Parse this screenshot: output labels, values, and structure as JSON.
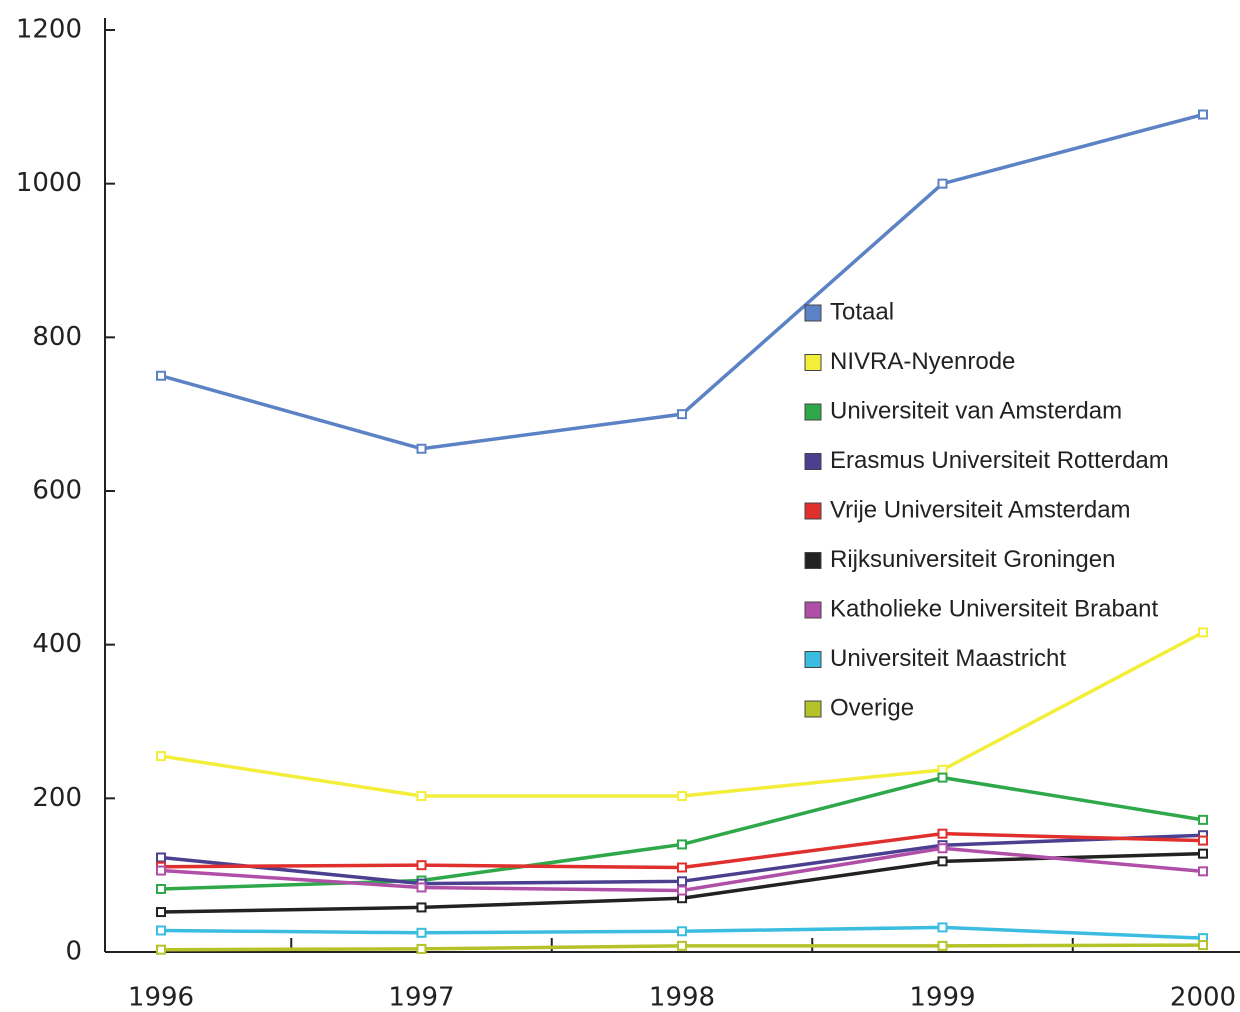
{
  "chart_data": {
    "type": "line",
    "categories": [
      "1996",
      "1997",
      "1998",
      "1999",
      "2000"
    ],
    "series": [
      {
        "name": "Totaal",
        "color": "#5b82c4",
        "values": [
          750,
          655,
          700,
          1000,
          1090
        ]
      },
      {
        "name": "NIVRA-Nyenrode",
        "color": "#f2ee3a",
        "values": [
          255,
          203,
          203,
          237,
          416
        ]
      },
      {
        "name": "Universiteit van Amsterdam",
        "color": "#2fa84a",
        "values": [
          82,
          93,
          140,
          227,
          172
        ]
      },
      {
        "name": "Erasmus Universiteit Rotterdam",
        "color": "#4b3f8f",
        "values": [
          123,
          89,
          92,
          139,
          152
        ]
      },
      {
        "name": "Vrije Universiteit Amsterdam",
        "color": "#e0302e",
        "values": [
          111,
          113,
          110,
          154,
          145
        ]
      },
      {
        "name": "Rijksuniversiteit Groningen",
        "color": "#222222",
        "values": [
          52,
          58,
          70,
          118,
          128
        ]
      },
      {
        "name": "Katholieke Universiteit Brabant",
        "color": "#b04fa8",
        "values": [
          106,
          84,
          80,
          135,
          105
        ]
      },
      {
        "name": "Universiteit Maastricht",
        "color": "#3bbde0",
        "values": [
          28,
          25,
          27,
          32,
          18
        ]
      },
      {
        "name": "Overige",
        "color": "#b5c228",
        "values": [
          3,
          4,
          8,
          8,
          9
        ]
      }
    ],
    "ylim": [
      0,
      1200
    ],
    "yticks": [
      0,
      200,
      400,
      600,
      800,
      1000,
      1200
    ]
  }
}
